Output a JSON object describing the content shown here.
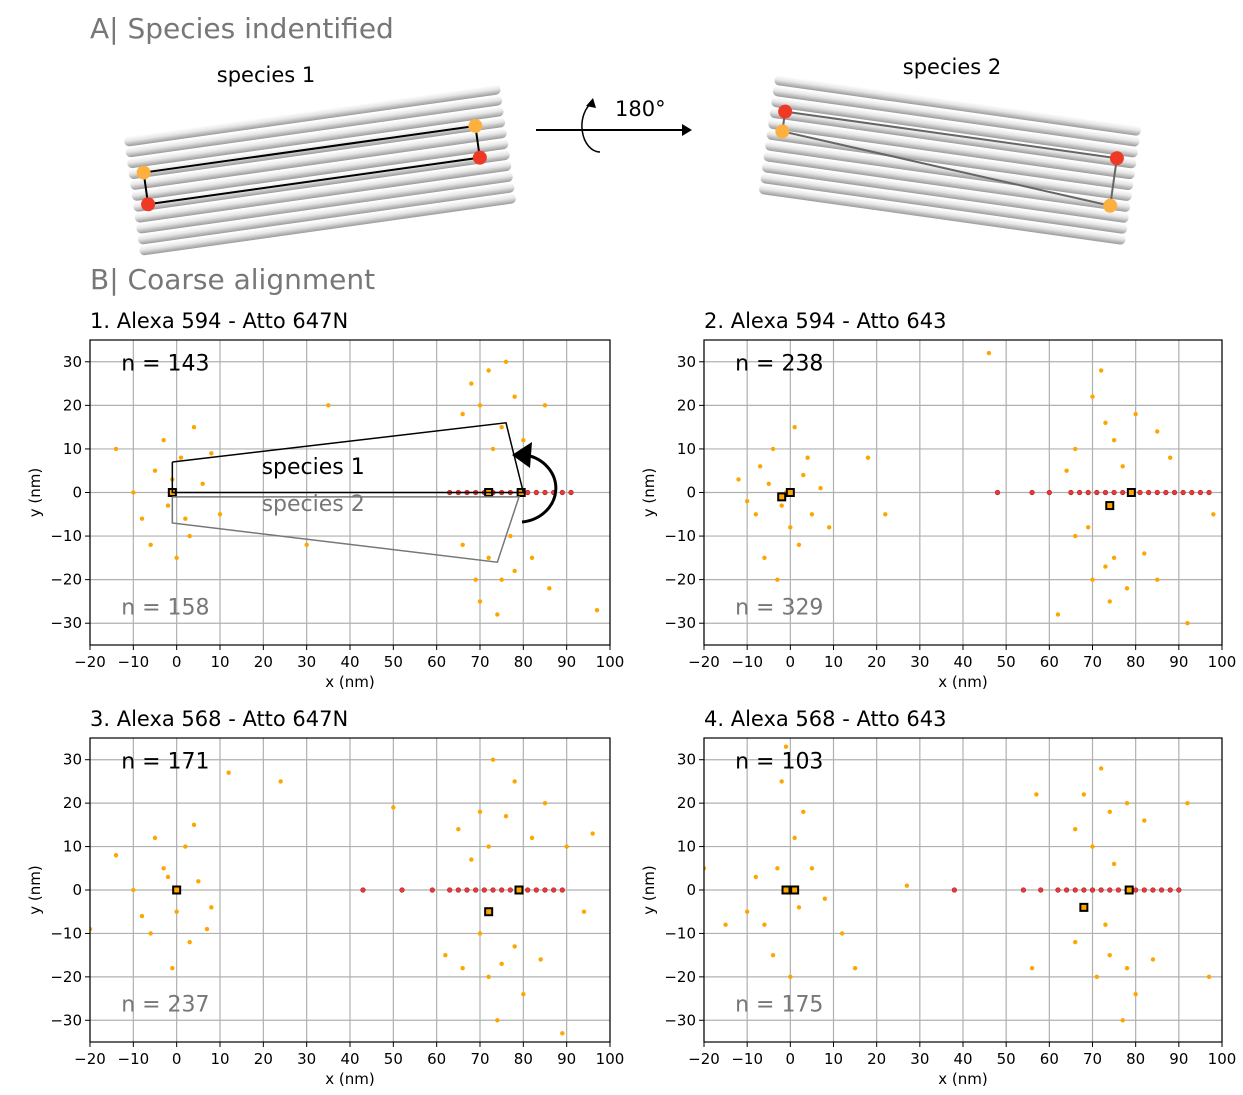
{
  "section_a": {
    "title": "A| Species indentified",
    "species": [
      "species 1",
      "species 2"
    ],
    "rotation": "180°"
  },
  "section_b": {
    "title": "B| Coarse alignment"
  },
  "chart_data": [
    {
      "type": "scatter",
      "title": "1. Alexa 594 - Atto 647N",
      "xlabel": "x (nm)",
      "ylabel": "y (nm)",
      "xlim": [
        -20,
        100
      ],
      "ylim": [
        -35,
        35
      ],
      "xticks": [
        {
          "value": -20,
          "label": "−20"
        },
        {
          "value": -10,
          "label": "−10"
        },
        0,
        10,
        20,
        30,
        40,
        50,
        60,
        70,
        80,
        90,
        100
      ],
      "yticks": [
        {
          "value": -30,
          "label": "−30"
        },
        {
          "value": -20,
          "label": "−20"
        },
        {
          "value": -10,
          "label": "−10"
        },
        0,
        10,
        20,
        30
      ],
      "grid": true,
      "annotations": [
        {
          "text": "n = 143",
          "color": "#000000"
        },
        {
          "text": "n = 158",
          "color": "#777777"
        },
        {
          "text": "species 1",
          "color": "#000000"
        },
        {
          "text": "species 2",
          "color": "#777777"
        }
      ],
      "shapes": [
        {
          "color": "#000000",
          "x": [
            -1,
            76,
            80,
            -1,
            -1
          ],
          "y": [
            7,
            16,
            0,
            0,
            7
          ]
        },
        {
          "color": "#777777",
          "x": [
            -1,
            79,
            74,
            -1,
            -1
          ],
          "y": [
            -1,
            -1,
            -16,
            -7,
            -1
          ]
        }
      ],
      "series": [
        {
          "color": "#ffa500",
          "marker": "circle",
          "x": [
            -5,
            -2,
            1,
            -8,
            3,
            -3,
            6,
            -10,
            0,
            4,
            -6,
            10,
            -14,
            8,
            -1,
            2,
            70,
            75,
            72,
            78,
            66,
            80,
            73,
            85,
            68,
            76,
            72,
            75,
            70,
            78,
            66,
            74,
            82,
            69,
            77,
            86,
            35,
            97,
            30
          ],
          "values": [
            5,
            -3,
            8,
            -6,
            -10,
            12,
            2,
            0,
            -15,
            15,
            -12,
            -5,
            10,
            9,
            3,
            -6,
            20,
            15,
            28,
            22,
            18,
            12,
            10,
            20,
            25,
            30,
            -15,
            -20,
            -25,
            -18,
            -12,
            -28,
            -15,
            -20,
            -10,
            -22,
            20,
            -27,
            -12
          ]
        },
        {
          "color": "#e8383d",
          "marker": "circle",
          "x": [
            63,
            65,
            67,
            69,
            71,
            73,
            75,
            77,
            79,
            81,
            83,
            85,
            87,
            89,
            91
          ],
          "values": [
            0,
            0,
            0,
            0,
            0,
            0,
            0,
            0,
            0,
            0,
            0,
            0,
            0,
            0,
            0
          ]
        },
        {
          "color": "#000000",
          "marker": "square",
          "x": [
            -1,
            79.5,
            72
          ],
          "values": [
            0,
            0,
            0
          ]
        }
      ]
    },
    {
      "type": "scatter",
      "title": "2. Alexa 594 - Atto 643",
      "xlabel": "x (nm)",
      "ylabel": "y (nm)",
      "xlim": [
        -20,
        100
      ],
      "ylim": [
        -35,
        35
      ],
      "xticks": [
        {
          "value": -20,
          "label": "−20"
        },
        {
          "value": -10,
          "label": "−10"
        },
        0,
        10,
        20,
        30,
        40,
        50,
        60,
        70,
        80,
        90,
        100
      ],
      "yticks": [
        {
          "value": -30,
          "label": "−30"
        },
        {
          "value": -20,
          "label": "−20"
        },
        {
          "value": -10,
          "label": "−10"
        },
        0,
        10,
        20,
        30
      ],
      "grid": true,
      "annotations": [
        {
          "text": "n = 238",
          "color": "#000000"
        },
        {
          "text": "n = 329",
          "color": "#777777"
        }
      ],
      "series": [
        {
          "color": "#ffa500",
          "marker": "circle",
          "x": [
            -2,
            -5,
            0,
            -8,
            3,
            -4,
            2,
            -10,
            5,
            -6,
            1,
            -12,
            7,
            -3,
            4,
            -1,
            9,
            -7,
            73,
            70,
            75,
            80,
            66,
            85,
            72,
            77,
            88,
            64,
            73,
            75,
            70,
            78,
            66,
            74,
            82,
            69,
            85,
            62,
            92,
            46,
            98,
            22,
            18
          ],
          "values": [
            -3,
            2,
            -8,
            -5,
            4,
            10,
            -12,
            -2,
            -5,
            -15,
            15,
            3,
            1,
            -20,
            8,
            0,
            -8,
            6,
            16,
            22,
            12,
            18,
            10,
            14,
            28,
            6,
            8,
            5,
            -17,
            -15,
            -20,
            -22,
            -10,
            -25,
            -14,
            -8,
            -20,
            -28,
            -30,
            32,
            -5,
            -5,
            8
          ]
        },
        {
          "color": "#e8383d",
          "marker": "circle",
          "x": [
            48,
            56,
            60,
            65,
            67,
            69,
            71,
            73,
            75,
            77,
            79,
            81,
            83,
            85,
            87,
            89,
            91,
            93,
            95,
            97
          ],
          "values": [
            0,
            0,
            0,
            0,
            0,
            0,
            0,
            0,
            0,
            0,
            0,
            0,
            0,
            0,
            0,
            0,
            0,
            0,
            0,
            0
          ]
        },
        {
          "color": "#000000",
          "marker": "square",
          "x": [
            -2,
            0,
            79,
            74
          ],
          "values": [
            -1,
            0,
            0,
            -3
          ]
        }
      ]
    },
    {
      "type": "scatter",
      "title": "3. Alexa 568 - Atto 647N",
      "xlabel": "x (nm)",
      "ylabel": "y (nm)",
      "xlim": [
        -20,
        100
      ],
      "ylim": [
        -35,
        35
      ],
      "xticks": [
        {
          "value": -20,
          "label": "−20"
        },
        {
          "value": -10,
          "label": "−10"
        },
        0,
        10,
        20,
        30,
        40,
        50,
        60,
        70,
        80,
        90,
        100
      ],
      "yticks": [
        {
          "value": -30,
          "label": "−30"
        },
        {
          "value": -20,
          "label": "−20"
        },
        {
          "value": -10,
          "label": "−10"
        },
        0,
        10,
        20,
        30
      ],
      "grid": true,
      "annotations": [
        {
          "text": "n = 171",
          "color": "#000000"
        },
        {
          "text": "n = 237",
          "color": "#777777"
        }
      ],
      "series": [
        {
          "color": "#ffa500",
          "marker": "circle",
          "x": [
            -3,
            0,
            2,
            -8,
            3,
            -5,
            5,
            -10,
            -1,
            4,
            -6,
            8,
            -14,
            7,
            -2,
            12,
            24,
            -20,
            76,
            72,
            78,
            70,
            65,
            82,
            73,
            85,
            68,
            90,
            75,
            72,
            78,
            66,
            80,
            70,
            84,
            74,
            62,
            89,
            50,
            96,
            94
          ],
          "values": [
            5,
            -5,
            10,
            -6,
            -12,
            12,
            2,
            0,
            -18,
            15,
            -10,
            -4,
            8,
            -9,
            3,
            27,
            25,
            -9,
            17,
            10,
            25,
            18,
            14,
            12,
            30,
            20,
            7,
            10,
            -17,
            -20,
            -13,
            -18,
            -24,
            -10,
            -16,
            -30,
            -15,
            -33,
            19,
            13,
            -5
          ]
        },
        {
          "color": "#e8383d",
          "marker": "circle",
          "x": [
            43,
            52,
            59,
            63,
            65,
            67,
            69,
            71,
            73,
            75,
            77,
            79,
            81,
            83,
            85,
            87,
            89
          ],
          "values": [
            0,
            0,
            0,
            0,
            0,
            0,
            0,
            0,
            0,
            0,
            0,
            0,
            0,
            0,
            0,
            0,
            0
          ]
        },
        {
          "color": "#000000",
          "marker": "square",
          "x": [
            0,
            79,
            72
          ],
          "values": [
            0,
            0,
            -5
          ]
        }
      ]
    },
    {
      "type": "scatter",
      "title": "4. Alexa 568 - Atto 643",
      "xlabel": "x (nm)",
      "ylabel": "y (nm)",
      "xlim": [
        -20,
        100
      ],
      "ylim": [
        -35,
        35
      ],
      "xticks": [
        {
          "value": -20,
          "label": "−20"
        },
        {
          "value": -10,
          "label": "−10"
        },
        0,
        10,
        20,
        30,
        40,
        50,
        60,
        70,
        80,
        90,
        100
      ],
      "yticks": [
        {
          "value": -30,
          "label": "−30"
        },
        {
          "value": -20,
          "label": "−20"
        },
        {
          "value": -10,
          "label": "−10"
        },
        0,
        10,
        20,
        30
      ],
      "grid": true,
      "annotations": [
        {
          "text": "n = 103",
          "color": "#000000"
        },
        {
          "text": "n = 175",
          "color": "#777777"
        }
      ],
      "series": [
        {
          "color": "#ffa500",
          "marker": "circle",
          "x": [
            -1,
            -3,
            2,
            -6,
            1,
            -4,
            5,
            -8,
            0,
            3,
            -10,
            8,
            -2,
            12,
            15,
            -15,
            -20,
            74,
            70,
            78,
            72,
            66,
            82,
            75,
            92,
            68,
            74,
            71,
            78,
            66,
            80,
            73,
            84,
            77,
            56,
            97,
            27,
            -1,
            57
          ],
          "values": [
            0,
            5,
            -4,
            -8,
            12,
            -15,
            5,
            3,
            -20,
            18,
            -5,
            -2,
            25,
            -10,
            -18,
            -8,
            5,
            18,
            10,
            20,
            28,
            14,
            16,
            6,
            20,
            22,
            -15,
            -20,
            -18,
            -12,
            -24,
            -8,
            -16,
            -30,
            -18,
            -20,
            1,
            33,
            22
          ]
        },
        {
          "color": "#e8383d",
          "marker": "circle",
          "x": [
            38,
            54,
            58,
            62,
            64,
            66,
            68,
            70,
            72,
            74,
            76,
            78,
            80,
            82,
            84,
            86,
            88,
            90
          ],
          "values": [
            0,
            0,
            0,
            0,
            0,
            0,
            0,
            0,
            0,
            0,
            0,
            0,
            0,
            0,
            0,
            0,
            0,
            0
          ]
        },
        {
          "color": "#000000",
          "marker": "square",
          "x": [
            -1,
            1,
            78.5,
            68
          ],
          "values": [
            0,
            0,
            0,
            -4
          ]
        }
      ]
    }
  ]
}
